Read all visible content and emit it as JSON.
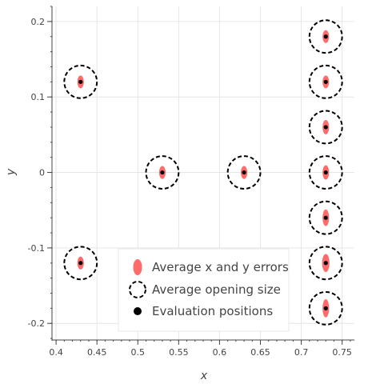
{
  "chart_data": {
    "type": "scatter",
    "xlabel": "x",
    "ylabel": "y",
    "xlim": [
      0.395,
      0.765
    ],
    "ylim": [
      -0.222,
      0.22
    ],
    "x_ticks": [
      0.4,
      0.45,
      0.5,
      0.55,
      0.6,
      0.65,
      0.7,
      0.75
    ],
    "x_tick_labels": [
      "0.4",
      "0.45",
      "0.5",
      "0.55",
      "0.6",
      "0.65",
      "0.7",
      "0.75"
    ],
    "y_ticks": [
      -0.2,
      -0.1,
      0,
      0.1,
      0.2
    ],
    "y_tick_labels": [
      "-0.2",
      "-0.1",
      "0",
      "0.1",
      "0.2"
    ],
    "grid": true,
    "legend_position": "bottom-center",
    "colors": {
      "errors": "#ff6b6b",
      "opening": "#000000",
      "evaluation": "#000000",
      "grid": "#e6e6e6",
      "axis": "#444444"
    },
    "series": [
      {
        "name": "Average x and y errors",
        "marker": "ellipse",
        "points": [
          {
            "x": 0.43,
            "y": 0.12,
            "x_err": 0.004,
            "y_err": 0.0085
          },
          {
            "x": 0.43,
            "y": -0.12,
            "x_err": 0.004,
            "y_err": 0.0085
          },
          {
            "x": 0.53,
            "y": 0.0,
            "x_err": 0.004,
            "y_err": 0.0085
          },
          {
            "x": 0.63,
            "y": 0.0,
            "x_err": 0.004,
            "y_err": 0.0085
          },
          {
            "x": 0.73,
            "y": 0.18,
            "x_err": 0.004,
            "y_err": 0.0085
          },
          {
            "x": 0.73,
            "y": 0.12,
            "x_err": 0.004,
            "y_err": 0.0085
          },
          {
            "x": 0.73,
            "y": 0.06,
            "x_err": 0.004,
            "y_err": 0.0095
          },
          {
            "x": 0.73,
            "y": 0.0,
            "x_err": 0.004,
            "y_err": 0.0095
          },
          {
            "x": 0.73,
            "y": -0.06,
            "x_err": 0.004,
            "y_err": 0.011
          },
          {
            "x": 0.73,
            "y": -0.12,
            "x_err": 0.0045,
            "y_err": 0.012
          },
          {
            "x": 0.73,
            "y": -0.18,
            "x_err": 0.004,
            "y_err": 0.012
          }
        ]
      },
      {
        "name": "Average opening size",
        "marker": "dashed-circle",
        "points": [
          {
            "x": 0.43,
            "y": 0.12,
            "r": 0.02
          },
          {
            "x": 0.43,
            "y": -0.12,
            "r": 0.02
          },
          {
            "x": 0.53,
            "y": 0.0,
            "r": 0.02
          },
          {
            "x": 0.63,
            "y": 0.0,
            "r": 0.02
          },
          {
            "x": 0.73,
            "y": 0.18,
            "r": 0.02
          },
          {
            "x": 0.73,
            "y": 0.12,
            "r": 0.02
          },
          {
            "x": 0.73,
            "y": 0.06,
            "r": 0.02
          },
          {
            "x": 0.73,
            "y": 0.0,
            "r": 0.02
          },
          {
            "x": 0.73,
            "y": -0.06,
            "r": 0.02
          },
          {
            "x": 0.73,
            "y": -0.12,
            "r": 0.02
          },
          {
            "x": 0.73,
            "y": -0.18,
            "r": 0.02
          }
        ]
      },
      {
        "name": "Evaluation positions",
        "marker": "dot",
        "points": [
          {
            "x": 0.43,
            "y": 0.12
          },
          {
            "x": 0.43,
            "y": -0.12
          },
          {
            "x": 0.53,
            "y": 0.0
          },
          {
            "x": 0.63,
            "y": 0.0
          },
          {
            "x": 0.73,
            "y": 0.18
          },
          {
            "x": 0.73,
            "y": 0.12
          },
          {
            "x": 0.73,
            "y": 0.06
          },
          {
            "x": 0.73,
            "y": 0.0
          },
          {
            "x": 0.73,
            "y": -0.06
          },
          {
            "x": 0.73,
            "y": -0.12
          },
          {
            "x": 0.73,
            "y": -0.18
          }
        ]
      }
    ]
  }
}
